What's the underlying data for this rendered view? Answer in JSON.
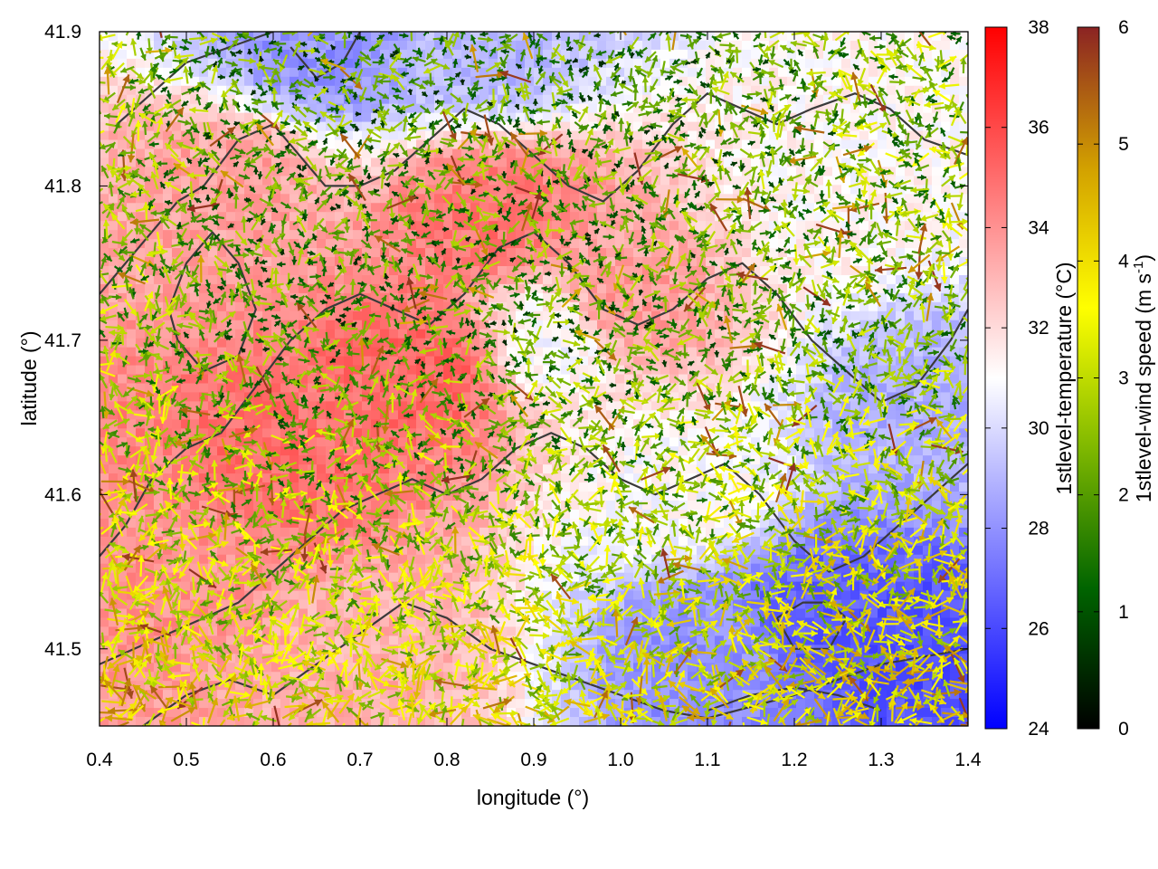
{
  "chart_data": {
    "type": "heatmap",
    "subtype": "temperature field with wind vectors and terrain contours",
    "xlabel": "longitude (°)",
    "ylabel": "latitude (°)",
    "xlim": [
      0.4,
      1.4
    ],
    "ylim": [
      41.45,
      41.9
    ],
    "xticks": [
      "0.4",
      "0.5",
      "0.6",
      "0.7",
      "0.8",
      "0.9",
      "1.0",
      "1.1",
      "1.2",
      "1.3",
      "1.4"
    ],
    "yticks": [
      "41.5",
      "41.6",
      "41.7",
      "41.8",
      "41.9"
    ],
    "grid": false,
    "colorbars": [
      {
        "label": "1stlevel-temperature (°C)",
        "range": [
          24,
          38
        ],
        "ticks": [
          "24",
          "26",
          "28",
          "30",
          "32",
          "34",
          "36",
          "38"
        ],
        "colors": [
          "#0000ff",
          "#ffffff",
          "#ff0000"
        ]
      },
      {
        "label": "1stlevel-wind speed (m s",
        "label_sup": "-1",
        "label_end": ")",
        "range": [
          0,
          6
        ],
        "ticks": [
          "0",
          "1",
          "2",
          "3",
          "4",
          "5",
          "6"
        ],
        "colors": [
          "#000000",
          "#006400",
          "#7fb800",
          "#ffff00",
          "#d2a000",
          "#8b2323"
        ]
      }
    ],
    "temperature_regions": [
      {
        "lon": 0.62,
        "lat": 41.62,
        "temp": 35.0
      },
      {
        "lon": 0.78,
        "lat": 41.68,
        "temp": 35.2
      },
      {
        "lon": 0.85,
        "lat": 41.78,
        "temp": 34.8
      },
      {
        "lon": 0.55,
        "lat": 41.8,
        "temp": 33.6
      },
      {
        "lon": 0.5,
        "lat": 41.55,
        "temp": 34.0
      },
      {
        "lon": 0.7,
        "lat": 41.5,
        "temp": 33.2
      },
      {
        "lon": 1.0,
        "lat": 41.72,
        "temp": 33.8
      },
      {
        "lon": 0.66,
        "lat": 41.89,
        "temp": 28.0
      },
      {
        "lon": 0.84,
        "lat": 41.89,
        "temp": 29.0
      },
      {
        "lon": 0.93,
        "lat": 41.7,
        "temp": 30.8
      },
      {
        "lon": 1.25,
        "lat": 41.8,
        "temp": 31.2
      },
      {
        "lon": 1.22,
        "lat": 41.52,
        "temp": 26.5
      },
      {
        "lon": 1.33,
        "lat": 41.5,
        "temp": 26.2
      },
      {
        "lon": 1.12,
        "lat": 41.5,
        "temp": 28.0
      },
      {
        "lon": 1.36,
        "lat": 41.65,
        "temp": 28.8
      },
      {
        "lon": 1.08,
        "lat": 41.6,
        "temp": 31.0
      }
    ],
    "contours": [
      [
        [
          0.4,
          41.73
        ],
        [
          0.43,
          41.75
        ],
        [
          0.46,
          41.77
        ],
        [
          0.49,
          41.79
        ],
        [
          0.52,
          41.8
        ],
        [
          0.56,
          41.83
        ],
        [
          0.6,
          41.84
        ],
        [
          0.63,
          41.82
        ],
        [
          0.66,
          41.8
        ],
        [
          0.7,
          41.8
        ],
        [
          0.74,
          41.81
        ],
        [
          0.78,
          41.83
        ],
        [
          0.82,
          41.85
        ],
        [
          0.86,
          41.84
        ],
        [
          0.9,
          41.82
        ],
        [
          0.94,
          41.8
        ],
        [
          0.98,
          41.79
        ],
        [
          1.02,
          41.81
        ],
        [
          1.06,
          41.84
        ],
        [
          1.1,
          41.86
        ],
        [
          1.14,
          41.85
        ],
        [
          1.18,
          41.84
        ],
        [
          1.22,
          41.85
        ],
        [
          1.27,
          41.86
        ],
        [
          1.31,
          41.85
        ],
        [
          1.35,
          41.83
        ],
        [
          1.4,
          41.82
        ]
      ],
      [
        [
          0.4,
          41.56
        ],
        [
          0.43,
          41.58
        ],
        [
          0.46,
          41.61
        ],
        [
          0.5,
          41.63
        ],
        [
          0.54,
          41.64
        ],
        [
          0.58,
          41.67
        ],
        [
          0.62,
          41.7
        ],
        [
          0.66,
          41.72
        ],
        [
          0.7,
          41.73
        ],
        [
          0.74,
          41.72
        ],
        [
          0.78,
          41.71
        ],
        [
          0.82,
          41.73
        ],
        [
          0.86,
          41.76
        ],
        [
          0.9,
          41.77
        ],
        [
          0.94,
          41.75
        ],
        [
          0.98,
          41.72
        ],
        [
          1.02,
          41.71
        ],
        [
          1.06,
          41.72
        ],
        [
          1.1,
          41.74
        ],
        [
          1.14,
          41.75
        ],
        [
          1.18,
          41.73
        ],
        [
          1.22,
          41.7
        ],
        [
          1.26,
          41.68
        ],
        [
          1.3,
          41.66
        ],
        [
          1.34,
          41.67
        ],
        [
          1.38,
          41.7
        ],
        [
          1.4,
          41.72
        ]
      ],
      [
        [
          0.4,
          41.49
        ],
        [
          0.44,
          41.5
        ],
        [
          0.48,
          41.51
        ],
        [
          0.52,
          41.52
        ],
        [
          0.56,
          41.53
        ],
        [
          0.6,
          41.55
        ],
        [
          0.64,
          41.57
        ],
        [
          0.68,
          41.59
        ],
        [
          0.72,
          41.6
        ],
        [
          0.76,
          41.61
        ],
        [
          0.8,
          41.6
        ],
        [
          0.84,
          41.61
        ],
        [
          0.88,
          41.63
        ],
        [
          0.92,
          41.64
        ],
        [
          0.96,
          41.63
        ],
        [
          1.0,
          41.61
        ],
        [
          1.04,
          41.6
        ],
        [
          1.08,
          41.61
        ],
        [
          1.12,
          41.62
        ],
        [
          1.16,
          41.6
        ],
        [
          1.2,
          41.57
        ],
        [
          1.24,
          41.55
        ],
        [
          1.28,
          41.56
        ],
        [
          1.32,
          41.58
        ],
        [
          1.36,
          41.6
        ],
        [
          1.4,
          41.62
        ]
      ],
      [
        [
          0.45,
          41.45
        ],
        [
          0.5,
          41.47
        ],
        [
          0.55,
          41.48
        ],
        [
          0.6,
          41.47
        ],
        [
          0.65,
          41.49
        ],
        [
          0.7,
          41.51
        ],
        [
          0.75,
          41.53
        ],
        [
          0.8,
          41.52
        ],
        [
          0.85,
          41.5
        ],
        [
          0.9,
          41.49
        ],
        [
          0.95,
          41.48
        ],
        [
          1.0,
          41.47
        ],
        [
          1.05,
          41.46
        ],
        [
          1.1,
          41.455
        ],
        [
          1.2,
          41.47
        ],
        [
          1.3,
          41.49
        ],
        [
          1.4,
          41.5
        ]
      ],
      [
        [
          0.42,
          41.84
        ],
        [
          0.46,
          41.86
        ],
        [
          0.5,
          41.88
        ],
        [
          0.55,
          41.89
        ],
        [
          0.6,
          41.9
        ]
      ],
      [
        [
          0.48,
          41.72
        ],
        [
          0.5,
          41.75
        ],
        [
          0.53,
          41.77
        ],
        [
          0.56,
          41.75
        ],
        [
          0.58,
          41.72
        ],
        [
          0.56,
          41.69
        ],
        [
          0.52,
          41.68
        ],
        [
          0.49,
          41.7
        ],
        [
          0.48,
          41.72
        ]
      ],
      [
        [
          0.62,
          41.89
        ],
        [
          0.65,
          41.87
        ],
        [
          0.68,
          41.88
        ],
        [
          0.7,
          41.9
        ]
      ],
      [
        [
          1.18,
          41.52
        ],
        [
          1.21,
          41.53
        ],
        [
          1.24,
          41.53
        ],
        [
          1.26,
          41.52
        ],
        [
          1.24,
          41.5
        ],
        [
          1.2,
          41.5
        ],
        [
          1.18,
          41.52
        ]
      ],
      [
        [
          1.1,
          41.46
        ],
        [
          1.15,
          41.47
        ],
        [
          1.2,
          41.475
        ],
        [
          1.25,
          41.47
        ],
        [
          1.3,
          41.46
        ]
      ]
    ],
    "wind_field": {
      "grid_cols": 82,
      "grid_rows": 64,
      "speed_range": [
        0,
        6
      ]
    }
  }
}
